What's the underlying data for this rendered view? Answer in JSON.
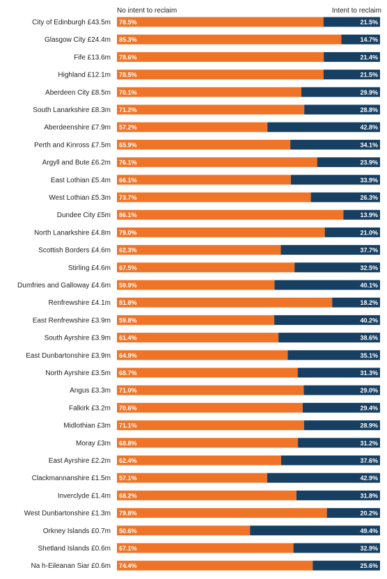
{
  "colors": {
    "no_intent": "#F07427",
    "intent": "#173F61",
    "label_text": "#222222",
    "bar_text": "#ffffff"
  },
  "legend": {
    "no_intent_label": "No intent to reclaim",
    "intent_label": "Intent to reclaim"
  },
  "chart_data": {
    "type": "bar",
    "orientation": "horizontal",
    "stacked": true,
    "xlim": [
      0,
      100
    ],
    "categories": [
      "City of Edinburgh £43.5m",
      "Glasgow City £24.4m",
      "Fife £13.6m",
      "Highland £12.1m",
      "Aberdeen City £8.5m",
      "South Lanarkshire £8.3m",
      "Aberdeenshire £7.9m",
      "Perth and Kinross £7.5m",
      "Argyll and Bute £6.2m",
      "East Lothian £5.4m",
      "West Lothian £5.3m",
      "Dundee City £5m",
      "North Lanarkshire £4.8m",
      "Scottish Borders £4.6m",
      "Stirling £4.6m",
      "Dumfries and Galloway £4.6m",
      "Renfrewshire £4.1m",
      "East Renfrewshire £3.9m",
      "South Ayrshire £3.9m",
      "East Dunbartonshire £3.9m",
      "North Ayrshire £3.5m",
      "Angus £3.3m",
      "Falkirk £3.2m",
      "Midlothian £3m",
      "Moray £3m",
      "East Ayrshire £2.2m",
      "Clackmannanshire £1.5m",
      "Inverclyde £1.4m",
      "West Dunbartonshire £1.3m",
      "Orkney Islands £0.7m",
      "Shetland Islands £0.6m",
      "Na h-Eileanan Siar £0.6m"
    ],
    "series": [
      {
        "name": "No intent to reclaim",
        "values": [
          78.5,
          85.3,
          78.6,
          78.5,
          70.1,
          71.2,
          57.2,
          65.9,
          76.1,
          66.1,
          73.7,
          86.1,
          79.0,
          62.3,
          67.5,
          59.9,
          81.8,
          59.8,
          61.4,
          64.9,
          68.7,
          71.0,
          70.6,
          71.1,
          68.8,
          62.4,
          57.1,
          68.2,
          79.8,
          50.6,
          67.1,
          74.4
        ],
        "labels": [
          "78.5%",
          "85.3%",
          "78.6%",
          "78.5%",
          "70.1%",
          "71.2%",
          "57.2%",
          "65.9%",
          "76.1%",
          "66.1%",
          "73.7%",
          "86.1%",
          "79.0%",
          "62.3%",
          "67.5%",
          "59.9%",
          "81.8%",
          "59.8%",
          "61.4%",
          "64.9%",
          "68.7%",
          "71.0%",
          "70.6%",
          "71.1%",
          "68.8%",
          "62.4%",
          "57.1%",
          "68.2%",
          "79.8%",
          "50.6%",
          "67.1%",
          "74.4%"
        ]
      },
      {
        "name": "Intent to reclaim",
        "values": [
          21.5,
          14.7,
          21.4,
          21.5,
          29.9,
          28.8,
          42.8,
          34.1,
          23.9,
          33.9,
          26.3,
          13.9,
          21.0,
          37.7,
          32.5,
          40.1,
          18.2,
          40.2,
          38.6,
          35.1,
          31.3,
          29.0,
          29.4,
          28.9,
          31.2,
          37.6,
          42.9,
          31.8,
          20.2,
          49.4,
          32.9,
          25.6
        ],
        "labels": [
          "21.5%",
          "14.7%",
          "21.4%",
          "21.5%",
          "29.9%",
          "28.8%",
          "42.8%",
          "34.1%",
          "23.9%",
          "33.9%",
          "26.3%",
          "13.9%",
          "21.0%",
          "37.7%",
          "32.5%",
          "40.1%",
          "18.2%",
          "40.2%",
          "38.6%",
          "35.1%",
          "31.3%",
          "29.0%",
          "29.4%",
          "28.9%",
          "31.2%",
          "37.6%",
          "42.9%",
          "31.8%",
          "20.2%",
          "49.4%",
          "32.9%",
          "25.6%"
        ]
      }
    ]
  }
}
